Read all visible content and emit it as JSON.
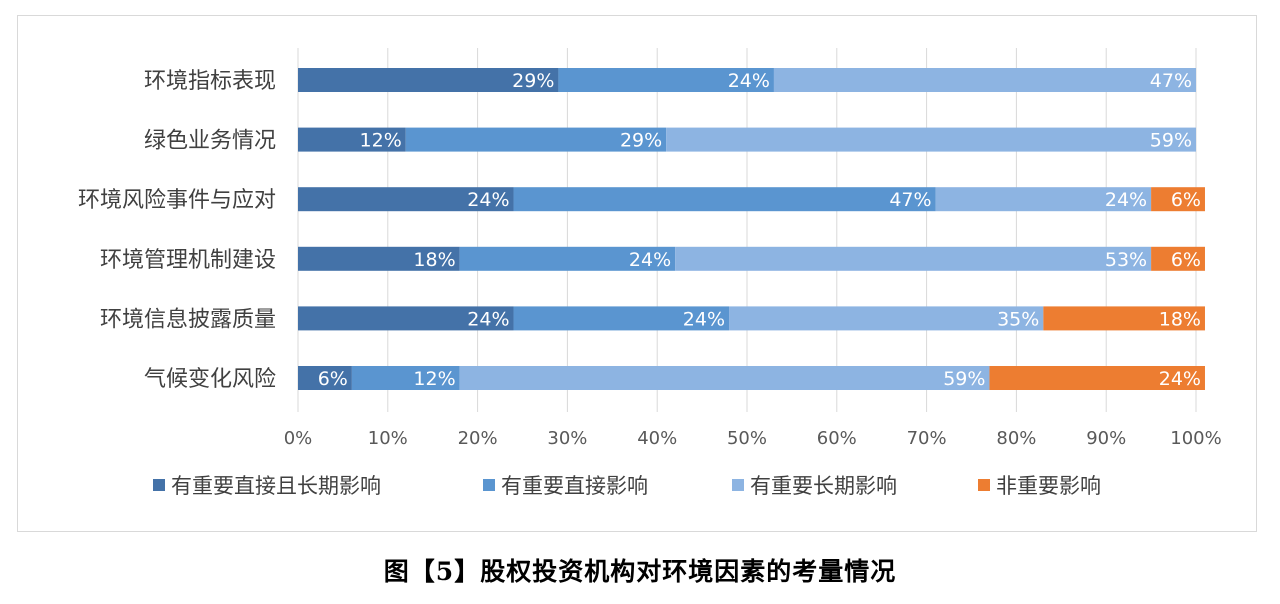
{
  "chart_data": {
    "type": "bar",
    "orientation": "horizontal",
    "stacked": "percent",
    "categories": [
      "环境指标表现",
      "绿色业务情况",
      "环境风险事件与应对",
      "环境管理机制建设",
      "环境信息披露质量",
      "气候变化风险"
    ],
    "series": [
      {
        "name": "有重要直接且长期影响",
        "color": "#4472a8",
        "values": [
          29,
          12,
          24,
          18,
          24,
          6
        ]
      },
      {
        "name": "有重要直接影响",
        "color": "#5a95d0",
        "values": [
          24,
          29,
          47,
          24,
          24,
          12
        ]
      },
      {
        "name": "有重要长期影响",
        "color": "#8db4e2",
        "values": [
          47,
          59,
          24,
          53,
          35,
          59
        ]
      },
      {
        "name": "非重要影响",
        "color": "#ed7d31",
        "values": [
          0,
          0,
          6,
          6,
          18,
          24
        ]
      }
    ],
    "xlim": [
      0,
      100
    ],
    "xticks": [
      "0%",
      "10%",
      "20%",
      "30%",
      "40%",
      "50%",
      "60%",
      "70%",
      "80%",
      "90%",
      "100%"
    ],
    "value_suffix": "%",
    "grid": "vertical",
    "legend": "bottom"
  },
  "caption": "图【5】股权投资机构对环境因素的考量情况"
}
